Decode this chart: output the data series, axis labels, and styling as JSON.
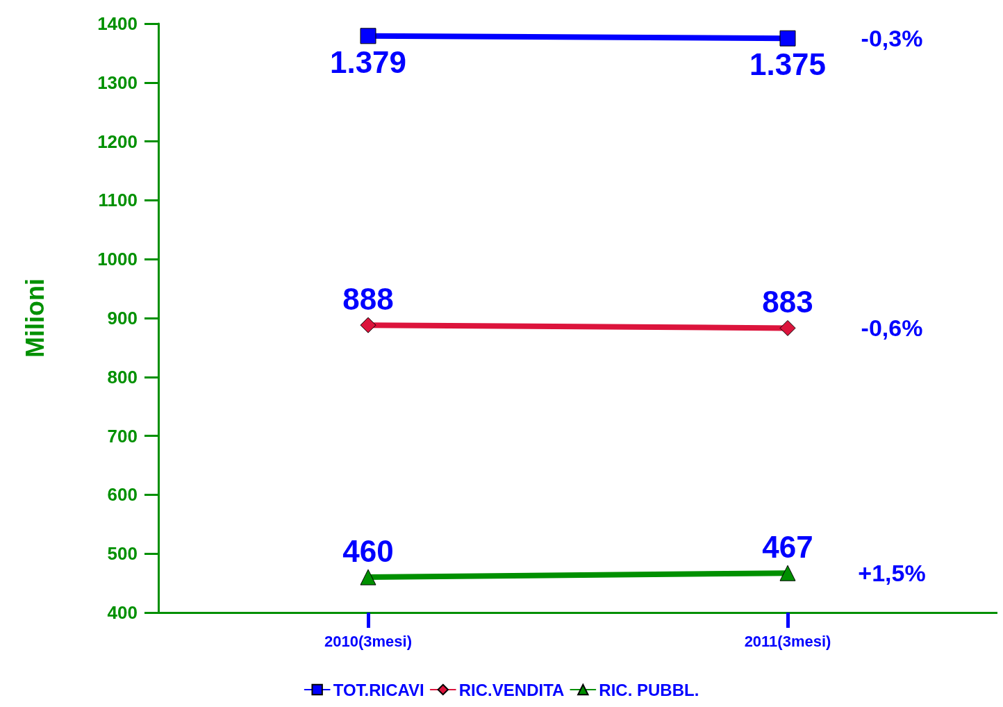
{
  "chart_data": {
    "type": "line",
    "ylabel": "Milioni",
    "categories": [
      "2010(3mesi)",
      "2011(3mesi)"
    ],
    "series": [
      {
        "name": "TOT.RICAVI",
        "color": "#0000ff",
        "marker": "square",
        "values": [
          1379,
          1375
        ],
        "value_labels": [
          "1.379",
          "1.375"
        ]
      },
      {
        "name": "RIC.VENDITA",
        "color": "#dc143c",
        "marker": "diamond",
        "values": [
          888,
          883
        ],
        "value_labels": [
          "888",
          "883"
        ]
      },
      {
        "name": "RIC. PUBBL.",
        "color": "#009000",
        "marker": "triangle",
        "values": [
          460,
          467
        ],
        "value_labels": [
          "460",
          "467"
        ]
      }
    ],
    "ylim": [
      400,
      1400
    ],
    "yticks": [
      400,
      500,
      600,
      700,
      800,
      900,
      1000,
      1100,
      1200,
      1300,
      1400
    ],
    "annotations": [
      "-0,3%",
      "-0,6%",
      "+1,5%"
    ],
    "legend": "bottom",
    "grid": false
  }
}
